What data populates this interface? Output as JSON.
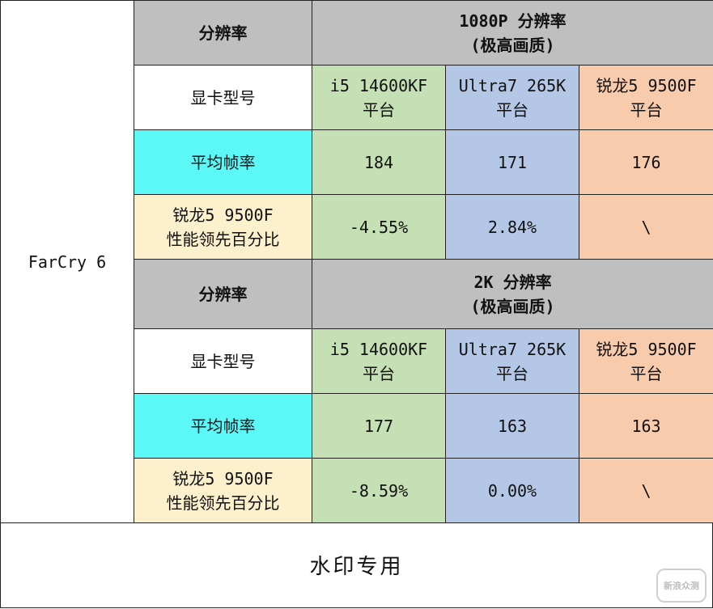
{
  "game": "FarCry 6",
  "sections": [
    {
      "header_label": "分辨率",
      "resolution_line1": "1080P 分辨率",
      "resolution_line2": "(极高画质)",
      "gpu_label": "显卡型号",
      "platforms": [
        {
          "line1": "i5 14600KF",
          "line2": "平台"
        },
        {
          "line1": "Ultra7 265K",
          "line2": "平台"
        },
        {
          "line1": "锐龙5 9500F",
          "line2": "平台"
        }
      ],
      "fps_label": "平均帧率",
      "fps": [
        "184",
        "171",
        "176"
      ],
      "lead_label_line1": "锐龙5 9500F",
      "lead_label_line2": "性能领先百分比",
      "lead": [
        "-4.55%",
        "2.84%",
        "\\"
      ]
    },
    {
      "header_label": "分辨率",
      "resolution_line1": "2K 分辨率",
      "resolution_line2": "(极高画质)",
      "gpu_label": "显卡型号",
      "platforms": [
        {
          "line1": "i5 14600KF",
          "line2": "平台"
        },
        {
          "line1": "Ultra7 265K",
          "line2": "平台"
        },
        {
          "line1": "锐龙5 9500F",
          "line2": "平台"
        }
      ],
      "fps_label": "平均帧率",
      "fps": [
        "177",
        "163",
        "163"
      ],
      "lead_label_line1": "锐龙5 9500F",
      "lead_label_line2": "性能领先百分比",
      "lead": [
        "-8.59%",
        "0.00%",
        "\\"
      ]
    }
  ],
  "footer": "水印专用",
  "watermark_logo": "新浪众测",
  "colors": {
    "header": "#bfbfbf",
    "fps_label": "#5cf7f7",
    "lead_label": "#fdf0cc",
    "intel": "#c5e0b4",
    "ultra": "#b4c7e7",
    "amd": "#f8cbad"
  }
}
